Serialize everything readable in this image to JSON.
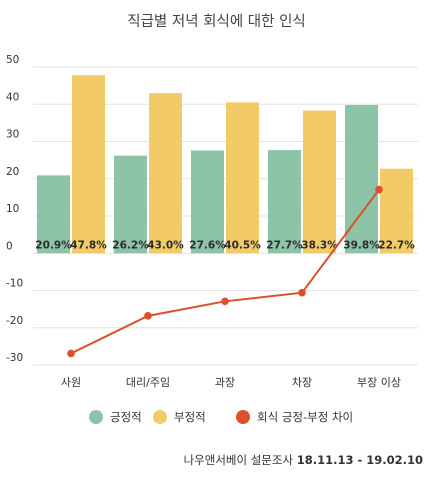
{
  "chart_data": {
    "type": "bar",
    "title": "직급별 저녁 회식에 대한 인식",
    "categories": [
      "사원",
      "대리/주임",
      "과장",
      "차장",
      "부장 이상"
    ],
    "series": [
      {
        "name": "긍정적",
        "type": "bar",
        "color": "#8dc3a6",
        "values": [
          20.9,
          26.2,
          27.6,
          27.7,
          39.8
        ]
      },
      {
        "name": "부정적",
        "type": "bar",
        "color": "#f2cb68",
        "values": [
          47.8,
          43.0,
          40.5,
          38.3,
          22.7
        ]
      },
      {
        "name": "회식 긍정-부정 차이",
        "type": "line",
        "color": "#d9522b",
        "values": [
          -26.9,
          -16.8,
          -12.9,
          -10.6,
          17.1
        ]
      }
    ],
    "data_labels": [
      [
        "20.9%",
        "47.8%"
      ],
      [
        "26.2%",
        "43.0%"
      ],
      [
        "27.6%",
        "40.5%"
      ],
      [
        "27.7%",
        "38.3%"
      ],
      [
        "39.8%",
        "22.7%"
      ]
    ],
    "y_ticks": [
      50,
      40,
      30,
      20,
      10,
      0,
      -10,
      -20,
      -30
    ],
    "ylim": [
      -30,
      50
    ],
    "grid": true,
    "legend_position": "bottom"
  },
  "source": {
    "label": "나우앤서베이 설문조사",
    "dates": "18.11.13 - 19.02.10"
  }
}
